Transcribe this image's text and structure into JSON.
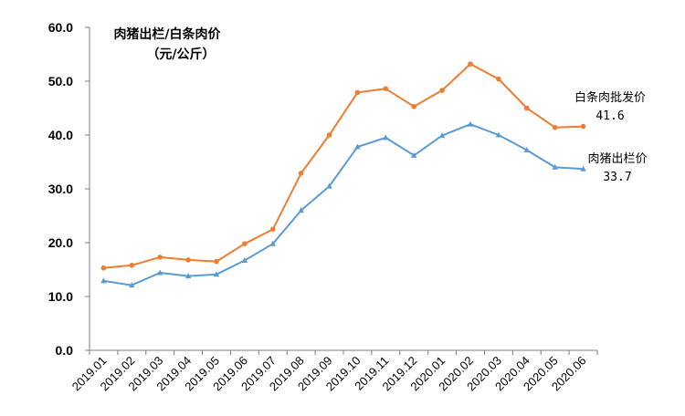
{
  "chart_data": {
    "type": "line",
    "title": "肉猪出栏/白条肉价",
    "subtitle": "（元/公斤）",
    "ylim": [
      0,
      60
    ],
    "yticks": [
      "0.0",
      "10.0",
      "20.0",
      "30.0",
      "40.0",
      "50.0",
      "60.0"
    ],
    "categories": [
      "2019.01",
      "2019.02",
      "2019.03",
      "2019.04",
      "2019.05",
      "2019.06",
      "2019.07",
      "2019.08",
      "2019.09",
      "2019.10",
      "2019.11",
      "2019.12",
      "2020.01",
      "2020.02",
      "2020.03",
      "2020.04",
      "2020.05",
      "2020.06"
    ],
    "series": [
      {
        "name": "白条肉批发价",
        "color": "#ed7d31",
        "marker": "circle",
        "end_label": "41.6",
        "values": [
          15.3,
          15.8,
          17.3,
          16.8,
          16.5,
          19.8,
          22.5,
          32.9,
          40.0,
          47.9,
          48.6,
          45.3,
          48.3,
          53.2,
          50.4,
          45.0,
          41.4,
          41.6
        ]
      },
      {
        "name": "肉猪出栏价",
        "color": "#5b9bd5",
        "marker": "triangle",
        "end_label": "33.7",
        "values": [
          12.9,
          12.1,
          14.4,
          13.8,
          14.1,
          16.7,
          19.8,
          26.0,
          30.5,
          37.8,
          39.5,
          36.2,
          39.9,
          42.0,
          40.0,
          37.2,
          34.0,
          33.7
        ]
      }
    ]
  }
}
